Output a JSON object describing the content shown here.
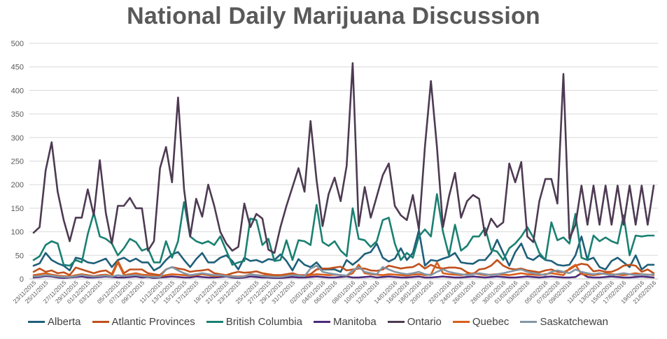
{
  "title": "National Daily Marijuana Discussion",
  "chart_data": {
    "type": "line",
    "title": "National Daily Marijuana Discussion",
    "ylim": [
      0,
      500
    ],
    "yticks": [
      0,
      50,
      100,
      150,
      200,
      250,
      300,
      350,
      400,
      450,
      500
    ],
    "grid": true,
    "legend_position": "bottom",
    "x_tick_labels": [
      "23/11/2015",
      "25/11/2015",
      "27/11/2015",
      "29/11/2015",
      "01/12/2015",
      "03/12/2015",
      "05/12/2015",
      "07/12/2015",
      "09/12/2015",
      "11/12/2015",
      "13/12/2015",
      "15/12/2015",
      "17/12/2015",
      "19/12/2015",
      "21/12/2015",
      "23/12/2015",
      "25/12/2015",
      "27/12/2015",
      "29/12/2015",
      "31/12/2015",
      "02/01/2016",
      "04/01/2016",
      "06/01/2016",
      "08/01/2016",
      "10/01/2016",
      "12/01/2016",
      "14/01/2016",
      "16/01/2016",
      "18/01/2016",
      "20/01/2016",
      "22/01/2016",
      "24/01/2016",
      "26/01/2016",
      "28/01/2016",
      "30/01/2016",
      "01/02/2016",
      "03/02/2016",
      "05/02/2016",
      "07/02/2016",
      "09/02/2016",
      "11/02/2016",
      "13/02/2016",
      "15/02/2016",
      "17/02/2016",
      "19/02/2016",
      "21/02/2016"
    ],
    "series": [
      {
        "name": "Alberta",
        "color": "#1f5f7a",
        "values": [
          28,
          33,
          55,
          40,
          33,
          28,
          18,
          45,
          42,
          35,
          33,
          38,
          43,
          25,
          40,
          45,
          37,
          43,
          35,
          35,
          18,
          25,
          40,
          52,
          57,
          40,
          25,
          42,
          55,
          35,
          35,
          45,
          50,
          38,
          20,
          45,
          38,
          40,
          35,
          42,
          40,
          52,
          38,
          18,
          42,
          30,
          25,
          35,
          20,
          20,
          20,
          15,
          40,
          30,
          40,
          53,
          57,
          75,
          45,
          37,
          43,
          65,
          40,
          55,
          103,
          28,
          40,
          38,
          43,
          47,
          55,
          35,
          33,
          32,
          40,
          40,
          55,
          83,
          55,
          28,
          57,
          75,
          45,
          40,
          50,
          40,
          38,
          30,
          28,
          30,
          50,
          90,
          40,
          45,
          25,
          20,
          38,
          45,
          35,
          25,
          50,
          20,
          30,
          30
        ]
      },
      {
        "name": "Atlantic Provinces",
        "color": "#c0501c",
        "values": [
          15,
          22,
          15,
          18,
          12,
          14,
          8,
          24,
          20,
          16,
          12,
          16,
          18,
          10,
          38,
          12,
          20,
          20,
          20,
          12,
          10,
          8,
          20,
          25,
          22,
          20,
          15,
          17,
          18,
          20,
          12,
          10,
          8,
          12,
          15,
          13,
          14,
          16,
          12,
          10,
          8,
          8,
          10,
          12,
          8,
          8,
          10,
          20,
          22,
          22,
          24,
          26,
          18,
          20,
          22,
          22,
          18,
          17,
          20,
          28,
          25,
          22,
          24,
          25,
          32,
          22,
          30,
          24,
          22,
          24,
          24,
          22,
          14,
          10,
          20,
          22,
          28,
          40,
          28,
          22,
          20,
          22,
          18,
          16,
          14,
          18,
          20,
          15,
          14,
          20,
          28,
          32,
          30,
          16,
          18,
          15,
          15,
          20,
          28,
          30,
          28,
          15,
          20,
          12
        ]
      },
      {
        "name": "British Columbia",
        "color": "#1a8072",
        "values": [
          40,
          48,
          72,
          80,
          75,
          30,
          28,
          40,
          35,
          95,
          140,
          90,
          85,
          75,
          50,
          65,
          85,
          78,
          60,
          65,
          35,
          35,
          80,
          45,
          80,
          163,
          90,
          80,
          75,
          80,
          72,
          90,
          60,
          30,
          35,
          38,
          128,
          125,
          72,
          85,
          38,
          40,
          82,
          40,
          82,
          80,
          72,
          157,
          78,
          70,
          80,
          60,
          48,
          150,
          85,
          82,
          68,
          80,
          125,
          130,
          75,
          40,
          55,
          45,
          90,
          105,
          90,
          180,
          100,
          50,
          115,
          60,
          70,
          90,
          90,
          108,
          62,
          58,
          40,
          65,
          75,
          90,
          110,
          88,
          55,
          40,
          120,
          82,
          88,
          75,
          138,
          45,
          40,
          92,
          80,
          88,
          80,
          75,
          135,
          50,
          92,
          90,
          92,
          92
        ]
      },
      {
        "name": "Manitoba",
        "color": "#4b2a7a",
        "values": [
          3,
          4,
          6,
          5,
          3,
          2,
          3,
          4,
          5,
          3,
          3,
          4,
          5,
          4,
          3,
          3,
          4,
          5,
          3,
          4,
          2,
          3,
          4,
          5,
          4,
          3,
          3,
          5,
          4,
          3,
          3,
          4,
          5,
          3,
          2,
          3,
          5,
          4,
          3,
          3,
          2,
          2,
          3,
          4,
          3,
          3,
          4,
          5,
          4,
          3,
          3,
          4,
          5,
          3,
          3,
          4,
          5,
          3,
          4,
          5,
          4,
          3,
          3,
          4,
          5,
          3,
          3,
          4,
          5,
          4,
          3,
          3,
          4,
          5,
          4,
          3,
          4,
          5,
          4,
          3,
          3,
          4,
          5,
          4,
          3,
          4,
          5,
          4,
          3,
          3,
          4,
          12,
          4,
          3,
          3,
          4,
          5,
          4,
          3,
          3,
          4,
          5,
          4,
          3
        ]
      },
      {
        "name": "Ontario",
        "color": "#4d3a52",
        "values": [
          98,
          110,
          230,
          290,
          185,
          125,
          80,
          130,
          130,
          190,
          135,
          252,
          140,
          75,
          155,
          155,
          172,
          150,
          150,
          60,
          80,
          235,
          280,
          205,
          385,
          190,
          90,
          170,
          132,
          200,
          155,
          100,
          75,
          60,
          68,
          160,
          110,
          138,
          128,
          62,
          55,
          110,
          155,
          195,
          235,
          185,
          335,
          210,
          112,
          180,
          215,
          165,
          240,
          458,
          112,
          195,
          130,
          175,
          220,
          245,
          155,
          135,
          125,
          178,
          105,
          280,
          420,
          280,
          110,
          175,
          225,
          130,
          165,
          178,
          170,
          92,
          128,
          110,
          120,
          245,
          205,
          248,
          90,
          78,
          165,
          212,
          212,
          160,
          435,
          85,
          115,
          198,
          115,
          198,
          115,
          198,
          115,
          198,
          115,
          198,
          115,
          198,
          115,
          198
        ]
      },
      {
        "name": "Quebec",
        "color": "#d95f1b",
        "values": [
          8,
          10,
          12,
          9,
          7,
          6,
          5,
          8,
          10,
          8,
          6,
          8,
          9,
          6,
          35,
          8,
          10,
          12,
          9,
          8,
          6,
          5,
          8,
          10,
          9,
          8,
          7,
          8,
          10,
          8,
          6,
          7,
          8,
          6,
          5,
          6,
          10,
          8,
          7,
          8,
          5,
          6,
          8,
          9,
          8,
          7,
          8,
          10,
          9,
          8,
          9,
          8,
          7,
          12,
          30,
          12,
          10,
          9,
          8,
          10,
          9,
          8,
          7,
          9,
          10,
          8,
          9,
          35,
          12,
          10,
          9,
          8,
          10,
          12,
          10,
          8,
          9,
          10,
          9,
          8,
          10,
          12,
          10,
          9,
          8,
          10,
          12,
          10,
          8,
          22,
          30,
          10,
          9,
          8,
          10,
          12,
          10,
          9,
          8,
          10,
          12,
          10,
          9,
          8
        ]
      },
      {
        "name": "Saskatchewan",
        "color": "#8396a6",
        "values": [
          5,
          6,
          8,
          7,
          5,
          4,
          4,
          6,
          8,
          6,
          5,
          6,
          7,
          5,
          8,
          6,
          7,
          8,
          6,
          5,
          4,
          4,
          20,
          25,
          18,
          12,
          8,
          10,
          12,
          10,
          8,
          8,
          6,
          5,
          4,
          5,
          10,
          8,
          6,
          5,
          4,
          4,
          6,
          8,
          7,
          6,
          22,
          28,
          15,
          12,
          10,
          8,
          7,
          18,
          25,
          15,
          12,
          10,
          25,
          20,
          15,
          12,
          10,
          12,
          15,
          10,
          8,
          15,
          20,
          15,
          12,
          10,
          8,
          10,
          12,
          10,
          8,
          10,
          12,
          15,
          18,
          20,
          15,
          12,
          10,
          8,
          15,
          18,
          15,
          12,
          20,
          15,
          12,
          10,
          12,
          10,
          8,
          10,
          12,
          10,
          8,
          10,
          8,
          10
        ]
      }
    ]
  }
}
